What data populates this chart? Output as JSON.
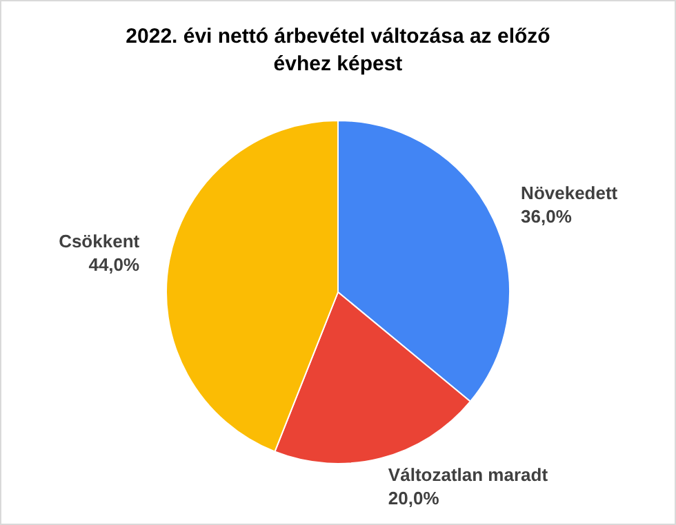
{
  "chart_data": {
    "type": "pie",
    "title": "2022. évi nettó árbevétel változása az előző évhez képest",
    "categories": [
      "Növekedett",
      "Változatlan maradt",
      "Csökkent"
    ],
    "values": [
      36,
      20,
      44
    ],
    "colors": [
      "#4285f4",
      "#ea4335",
      "#fbbc04"
    ],
    "value_labels": [
      "36,0%",
      "20,0%",
      "44,0%"
    ],
    "legend": false
  }
}
